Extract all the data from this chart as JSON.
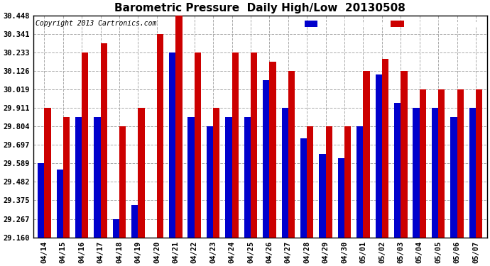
{
  "title": "Barometric Pressure  Daily High/Low  20130508",
  "copyright": "Copyright 2013 Cartronics.com",
  "low_color": "#0000cc",
  "high_color": "#cc0000",
  "bg_color": "#ffffff",
  "ylim_min": 29.16,
  "ylim_max": 30.448,
  "yticks": [
    29.16,
    29.267,
    29.375,
    29.482,
    29.589,
    29.697,
    29.804,
    29.911,
    30.019,
    30.126,
    30.233,
    30.341,
    30.448
  ],
  "dates": [
    "04/14",
    "04/15",
    "04/16",
    "04/17",
    "04/18",
    "04/19",
    "04/20",
    "04/21",
    "04/22",
    "04/23",
    "04/24",
    "04/25",
    "04/26",
    "04/27",
    "04/28",
    "04/29",
    "04/30",
    "05/01",
    "05/02",
    "05/03",
    "05/04",
    "05/05",
    "05/06",
    "05/07"
  ],
  "low_values": [
    29.589,
    29.553,
    29.858,
    29.857,
    29.267,
    29.35,
    29.16,
    30.233,
    29.858,
    29.804,
    29.857,
    29.858,
    30.072,
    29.911,
    29.733,
    29.643,
    29.621,
    29.804,
    30.106,
    29.94,
    29.911,
    29.911,
    29.857,
    29.911
  ],
  "high_values": [
    29.911,
    29.858,
    30.233,
    30.287,
    29.804,
    29.911,
    30.341,
    30.448,
    30.233,
    29.911,
    30.233,
    30.233,
    30.18,
    30.126,
    29.804,
    29.804,
    29.804,
    30.126,
    30.197,
    30.126,
    30.019,
    30.019,
    30.019,
    30.019
  ]
}
